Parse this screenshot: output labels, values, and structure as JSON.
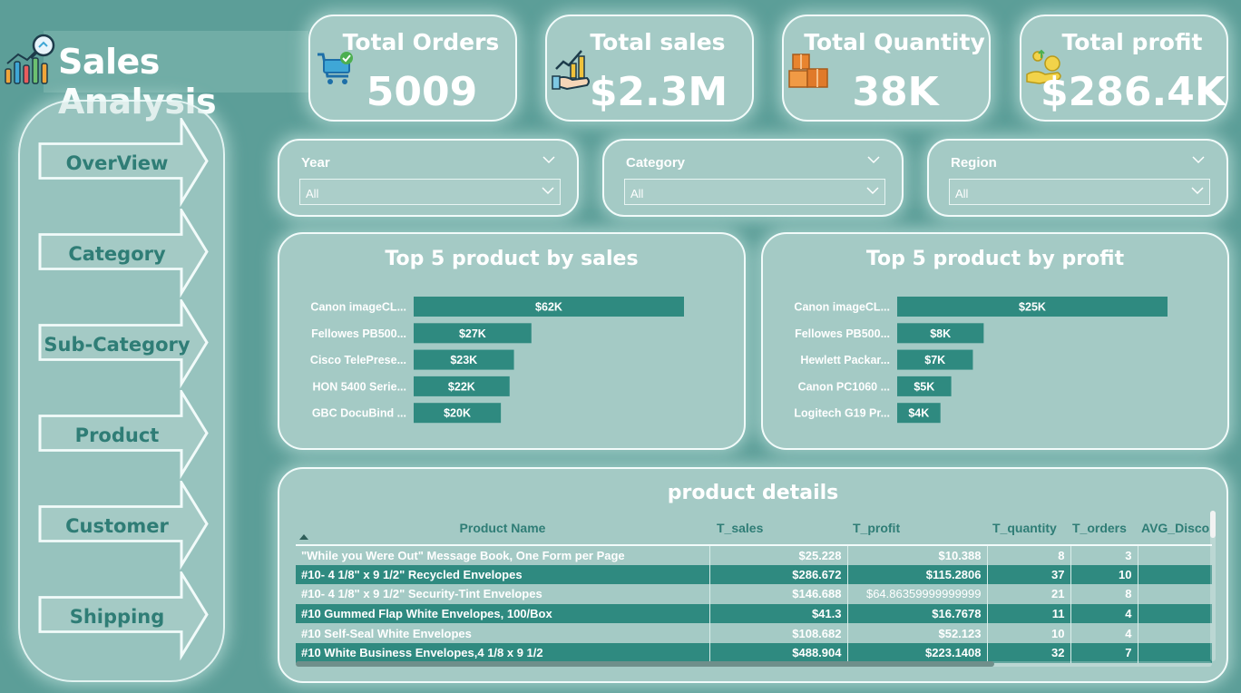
{
  "app": {
    "title": "Sales Analysis"
  },
  "sidebar": {
    "items": [
      {
        "label": "OverView"
      },
      {
        "label": "Category"
      },
      {
        "label": "Sub-Category"
      },
      {
        "label": "Product"
      },
      {
        "label": "Customer"
      },
      {
        "label": "Shipping"
      }
    ]
  },
  "kpis": [
    {
      "title": "Total Orders",
      "value": "5009",
      "icon": "shopping-cart-icon"
    },
    {
      "title": "Total sales",
      "value": "$2.3M",
      "icon": "sales-growth-icon"
    },
    {
      "title": "Total Quantity",
      "value": "38K",
      "icon": "boxes-icon"
    },
    {
      "title": "Total profit",
      "value": "$286.4K",
      "icon": "profit-coins-icon"
    }
  ],
  "filters": [
    {
      "label": "Year",
      "value": "All"
    },
    {
      "label": "Category",
      "value": "All"
    },
    {
      "label": "Region",
      "value": "All"
    }
  ],
  "colors": {
    "background": "#5c9e98",
    "card": "#a4cac5",
    "bar": "#2f8a80",
    "accent_text": "#2f7d76"
  },
  "chart_data": [
    {
      "type": "bar",
      "orientation": "horizontal",
      "title": "Top 5 product by sales",
      "categories": [
        "Canon imageCL...",
        "Fellowes PB500...",
        "Cisco TelePrese...",
        "HON 5400 Serie...",
        "GBC DocuBind ..."
      ],
      "values": [
        62,
        27,
        23,
        22,
        20
      ],
      "labels": [
        "$62K",
        "$27K",
        "$23K",
        "$22K",
        "$20K"
      ],
      "xlim": [
        0,
        62
      ]
    },
    {
      "type": "bar",
      "orientation": "horizontal",
      "title": "Top 5 product by profit",
      "categories": [
        "Canon imageCL...",
        "Fellowes PB500...",
        "Hewlett Packar...",
        "Canon PC1060 ...",
        "Logitech G19 Pr..."
      ],
      "values": [
        25,
        8,
        7,
        5,
        4
      ],
      "labels": [
        "$25K",
        "$8K",
        "$7K",
        "$5K",
        "$4K"
      ],
      "xlim": [
        0,
        25
      ]
    }
  ],
  "table": {
    "title": "product details",
    "columns": [
      "Product Name",
      "T_sales",
      "T_profit",
      "T_quantity",
      "T_orders",
      "AVG_Discount"
    ],
    "rows": [
      [
        "\"While you Were Out\" Message Book, One Form per Page",
        "$25.228",
        "$10.388",
        "8",
        "3",
        ""
      ],
      [
        "#10- 4 1/8\" x 9 1/2\" Recycled Envelopes",
        "$286.672",
        "$115.2806",
        "37",
        "10",
        ""
      ],
      [
        "#10- 4 1/8\" x 9 1/2\" Security-Tint Envelopes",
        "$146.688",
        "$64.86359999999999",
        "21",
        "8",
        ""
      ],
      [
        "#10 Gummed Flap White Envelopes, 100/Box",
        "$41.3",
        "$16.7678",
        "11",
        "4",
        ""
      ],
      [
        "#10 Self-Seal White Envelopes",
        "$108.682",
        "$52.123",
        "10",
        "4",
        ""
      ],
      [
        "#10 White Business Envelopes,4 1/8 x 9 1/2",
        "$488.904",
        "$223.1408",
        "32",
        "7",
        ""
      ]
    ]
  }
}
